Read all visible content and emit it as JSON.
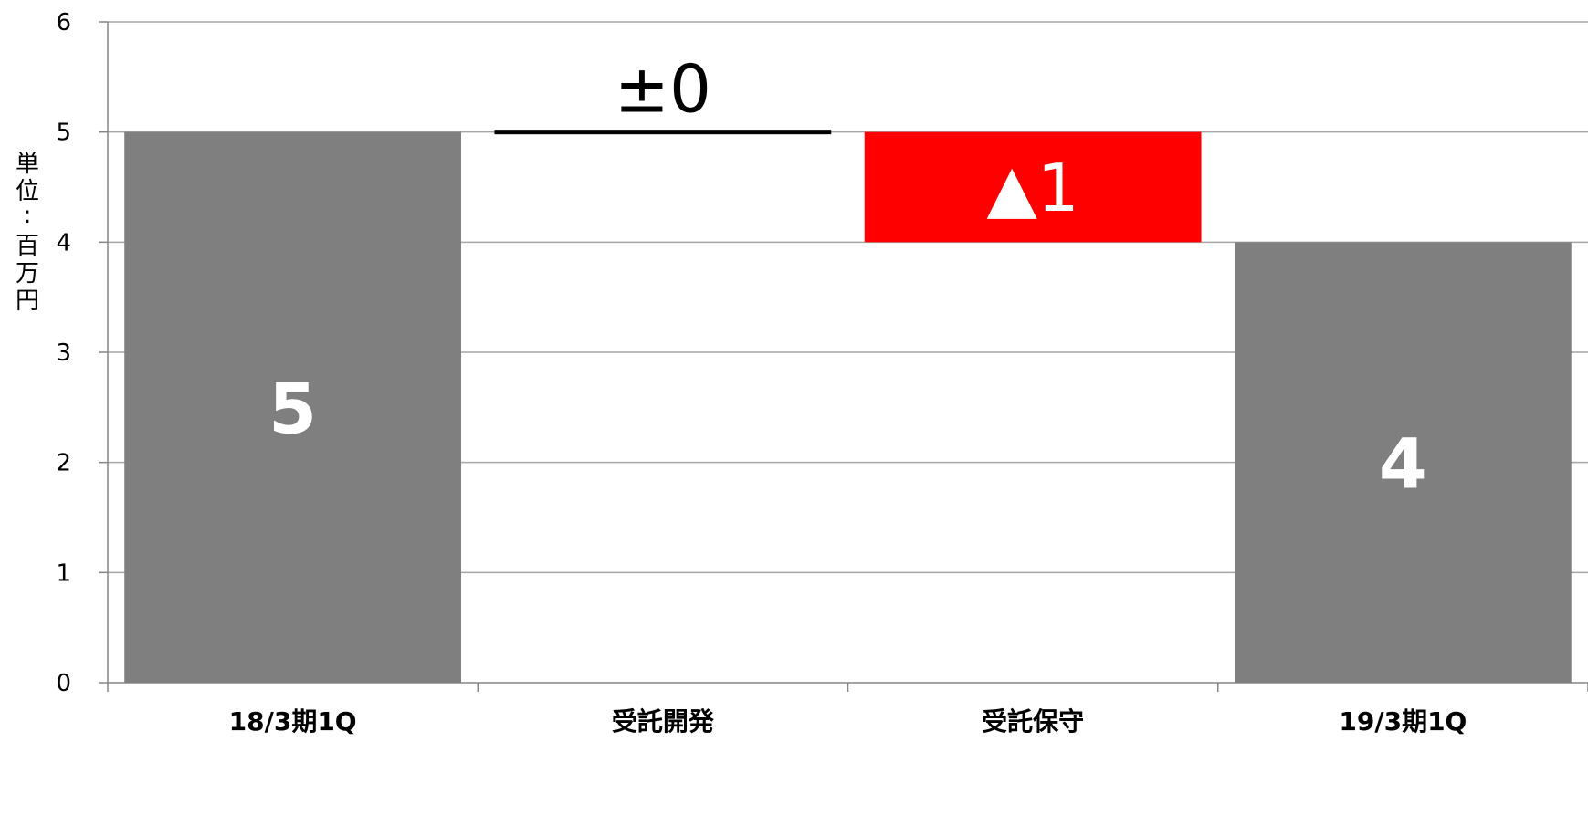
{
  "chart_data": {
    "type": "waterfall",
    "categories": [
      "18/3期1Q",
      "受託開発",
      "受託保守",
      "19/3期1Q"
    ],
    "values": [
      5,
      0,
      -1,
      4
    ],
    "kinds": [
      "total",
      "delta",
      "delta",
      "total"
    ],
    "data_labels": [
      "5",
      "±0",
      "▲1",
      "4"
    ],
    "ylabel": "単位:百万円",
    "ylim": [
      0,
      6
    ],
    "yticks": [
      "0",
      "1",
      "2",
      "3",
      "4",
      "5",
      "6"
    ],
    "grid": true,
    "legend": "none",
    "colors": {
      "total": "#7f7f7f",
      "decrease": "#ff0000",
      "zero": "#000000",
      "grid": "#a6a6a6",
      "axis": "#868686"
    }
  }
}
